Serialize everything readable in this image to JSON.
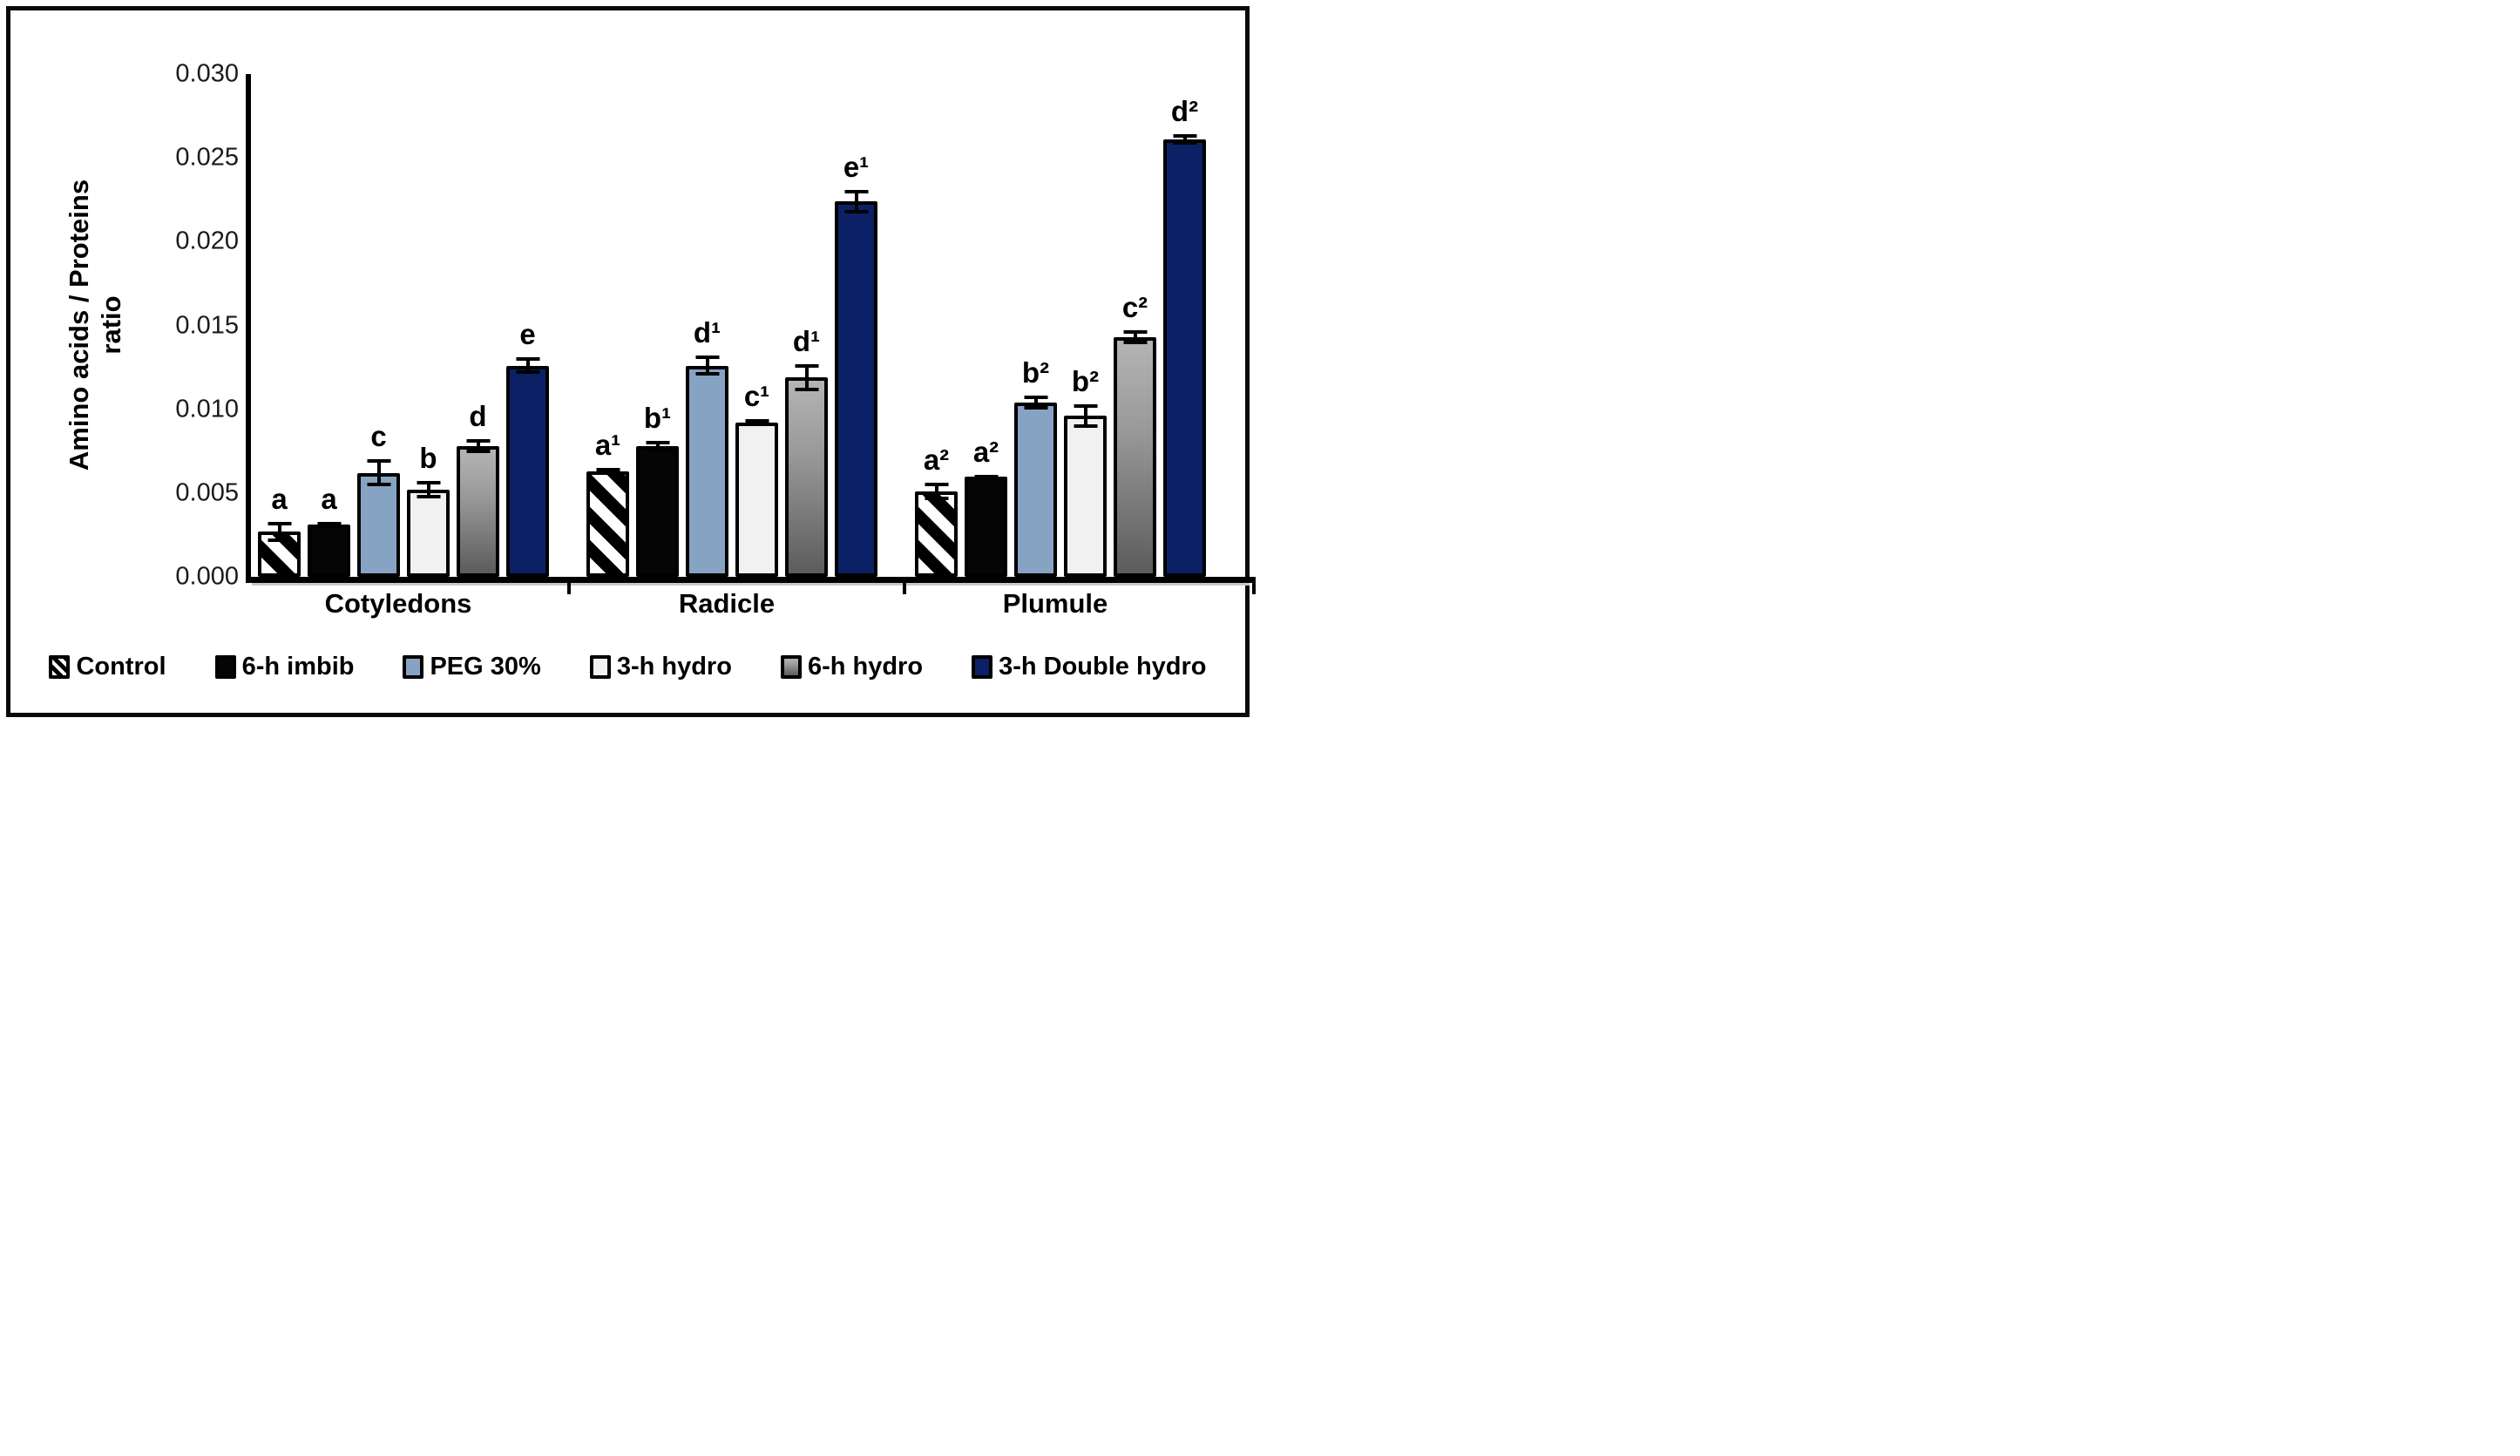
{
  "figure": {
    "y_axis_title_line1": "Amino acids / Proteins",
    "y_axis_title_line2": "ratio"
  },
  "colors": {
    "black": "#050505",
    "blue": "#87a3c3",
    "white": "#f1f1f1",
    "navy": "#0c2066",
    "gray_top": "#b4b4b4",
    "gray_bottom": "#5c5c5c",
    "hatch_stripe": "#000000",
    "axis": "#000000",
    "background": "#ffffff"
  },
  "chart_data": {
    "type": "bar",
    "title": "",
    "xlabel": "",
    "ylabel": "Amino acids / Proteins ratio",
    "ylim": [
      0,
      0.03
    ],
    "yticks": [
      0,
      0.005,
      0.01,
      0.015,
      0.02,
      0.025,
      0.03
    ],
    "ytick_labels": [
      "0.000",
      "0.005",
      "0.010",
      "0.015",
      "0.020",
      "0.025",
      "0.030"
    ],
    "grid": false,
    "legend_position": "bottom",
    "categories": [
      "Cotyledons",
      "Radicle",
      "Plumule"
    ],
    "series": [
      {
        "name": "Control",
        "fill": "hatch",
        "values": [
          0.0027,
          0.0063,
          0.0051
        ],
        "errors": [
          0.0006,
          0.0002,
          0.0005
        ],
        "letters": [
          "a",
          "a¹",
          "a²"
        ]
      },
      {
        "name": "6-h imbib",
        "fill": "black",
        "values": [
          0.0031,
          0.0078,
          0.006
        ],
        "errors": [
          0.0002,
          0.0003,
          0.0001
        ],
        "letters": [
          "a",
          "b¹",
          "a²"
        ]
      },
      {
        "name": "PEG 30%",
        "fill": "blue",
        "values": [
          0.0062,
          0.0126,
          0.0104
        ],
        "errors": [
          0.0008,
          0.0006,
          0.0004
        ],
        "letters": [
          "c",
          "d¹",
          "b²"
        ]
      },
      {
        "name": "3-h hydro",
        "fill": "white",
        "values": [
          0.0052,
          0.0092,
          0.0096
        ],
        "errors": [
          0.0005,
          0.0002,
          0.0007
        ],
        "letters": [
          "b",
          "c¹",
          "b²"
        ]
      },
      {
        "name": "6-h hydro",
        "fill": "graygrad",
        "values": [
          0.0078,
          0.0119,
          0.0143
        ],
        "errors": [
          0.0004,
          0.0008,
          0.0004
        ],
        "letters": [
          "d",
          "d¹",
          "c²"
        ]
      },
      {
        "name": "3-h Double hydro",
        "fill": "navy",
        "values": [
          0.0126,
          0.0224,
          0.0261
        ],
        "errors": [
          0.0005,
          0.0007,
          0.0003
        ],
        "letters": [
          "e",
          "e¹",
          "d²"
        ]
      }
    ]
  }
}
